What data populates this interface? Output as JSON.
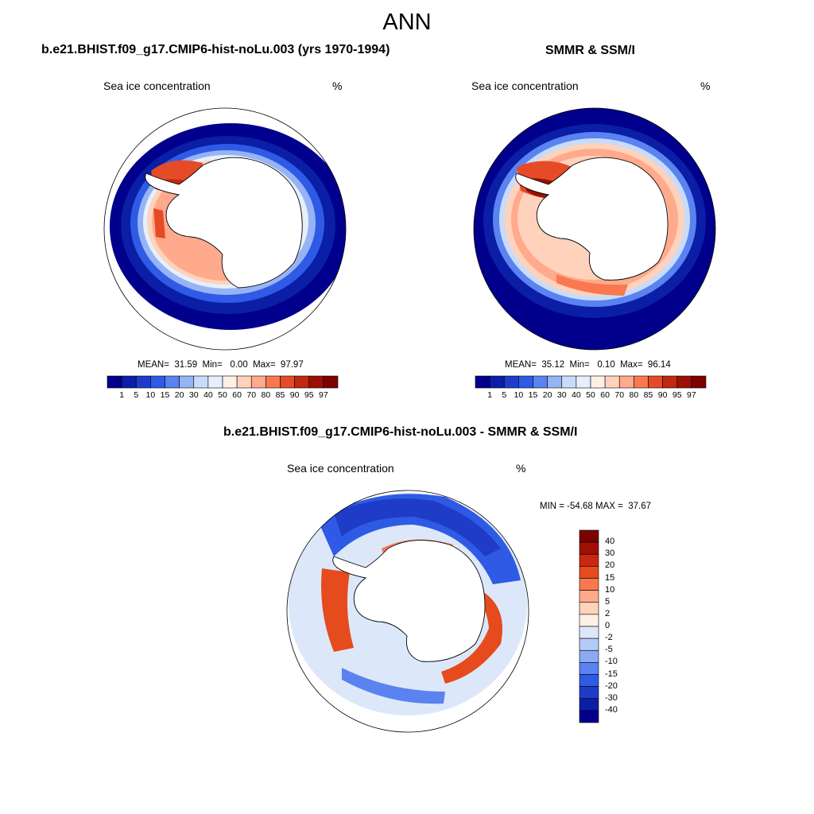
{
  "main_title": "ANN",
  "panels": [
    {
      "title": "b.e21.BHIST.f09_g17.CMIP6-hist-noLu.003 (yrs 1970-1994)",
      "variable": "Sea ice concentration",
      "units": "%",
      "stats": "MEAN=  31.59  Min=   0.00  Max=  97.97"
    },
    {
      "title": "SMMR & SSM/I",
      "variable": "Sea ice concentration",
      "units": "%",
      "stats": "MEAN=  35.12  Min=   0.10  Max=  96.14"
    },
    {
      "title": "b.e21.BHIST.f09_g17.CMIP6-hist-noLu.003 - SMMR & SSM/I",
      "variable": "Sea ice concentration",
      "units": "%",
      "stats": "MIN = -54.68 MAX =  37.67"
    }
  ],
  "colorbar_abs": {
    "labels": [
      "1",
      "5",
      "10",
      "15",
      "20",
      "30",
      "40",
      "50",
      "60",
      "70",
      "80",
      "85",
      "90",
      "95",
      "97"
    ],
    "colors": [
      "#00008c",
      "#0a1ea6",
      "#1e3cc8",
      "#2f5ae6",
      "#5a82f0",
      "#96b4f5",
      "#c8dcfa",
      "#e6f0fc",
      "#fff0e6",
      "#ffd2bc",
      "#ffaa8c",
      "#fa7850",
      "#e64b28",
      "#c32810",
      "#9b0f05",
      "#7d0000"
    ]
  },
  "colorbar_diff": {
    "labels": [
      "40",
      "30",
      "20",
      "15",
      "10",
      "5",
      "2",
      "0",
      "-2",
      "-5",
      "-10",
      "-15",
      "-20",
      "-30",
      "-40"
    ],
    "colors": [
      "#7d0000",
      "#a01005",
      "#c8280f",
      "#e64b1e",
      "#fa7850",
      "#ffaa8c",
      "#ffd2bc",
      "#fff0e6",
      "#dce8fa",
      "#b4ccf5",
      "#8caaf0",
      "#5a82f0",
      "#2f5ae6",
      "#1e3cc8",
      "#0a1ea6",
      "#00008c"
    ]
  }
}
